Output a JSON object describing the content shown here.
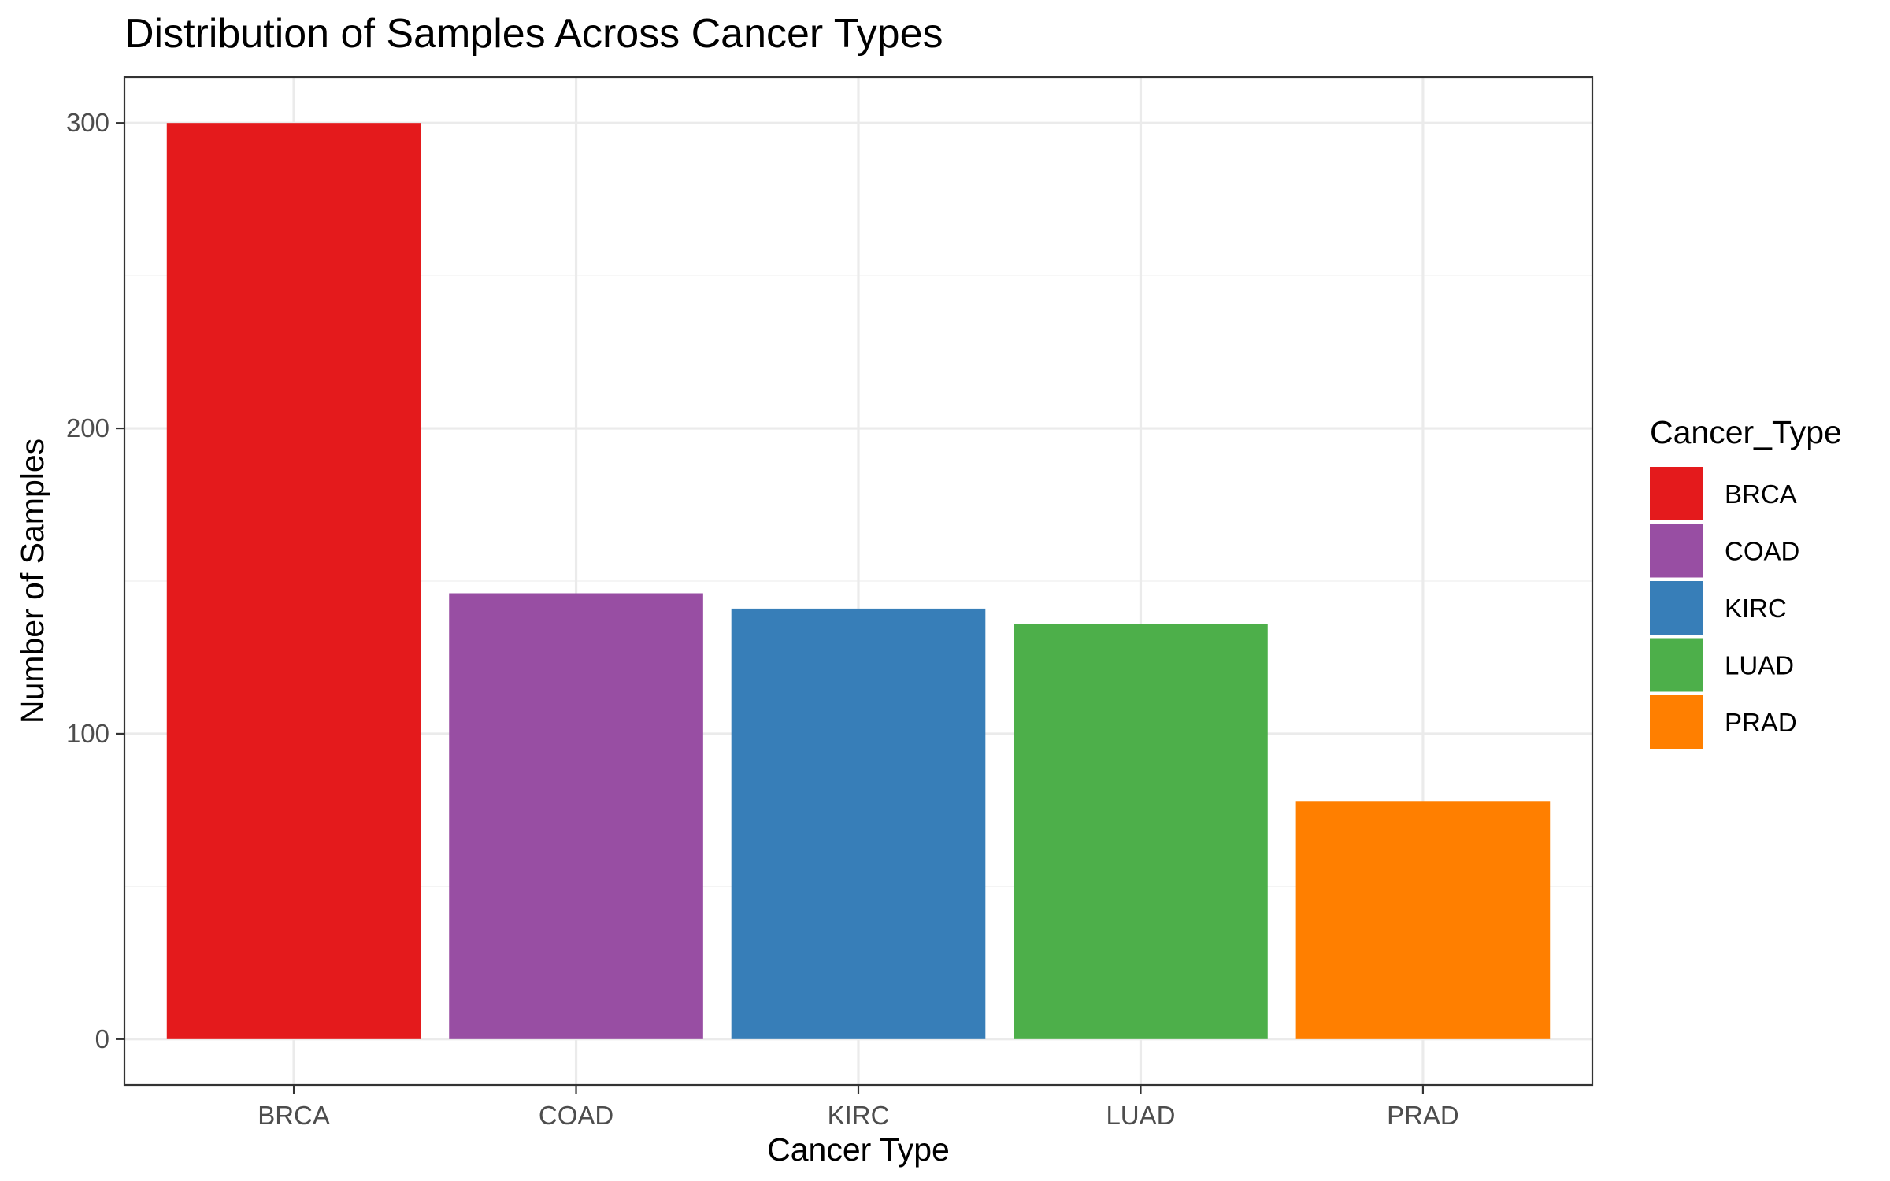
{
  "chart_data": {
    "type": "bar",
    "title": "Distribution of Samples Across Cancer Types",
    "xlabel": "Cancer Type",
    "ylabel": "Number of Samples",
    "categories": [
      "BRCA",
      "COAD",
      "KIRC",
      "LUAD",
      "PRAD"
    ],
    "values": [
      300,
      146,
      141,
      136,
      78
    ],
    "colors": [
      "#E41A1C",
      "#984EA3",
      "#377EB8",
      "#4DAF4A",
      "#FF7F00"
    ],
    "ylim": [
      -15,
      315
    ],
    "yticks": [
      0,
      100,
      200,
      300
    ],
    "yminor": [
      50,
      150,
      250
    ],
    "grid": true,
    "legend": {
      "title": "Cancer_Type",
      "placement": "right",
      "entries": [
        "BRCA",
        "COAD",
        "KIRC",
        "LUAD",
        "PRAD"
      ]
    }
  }
}
